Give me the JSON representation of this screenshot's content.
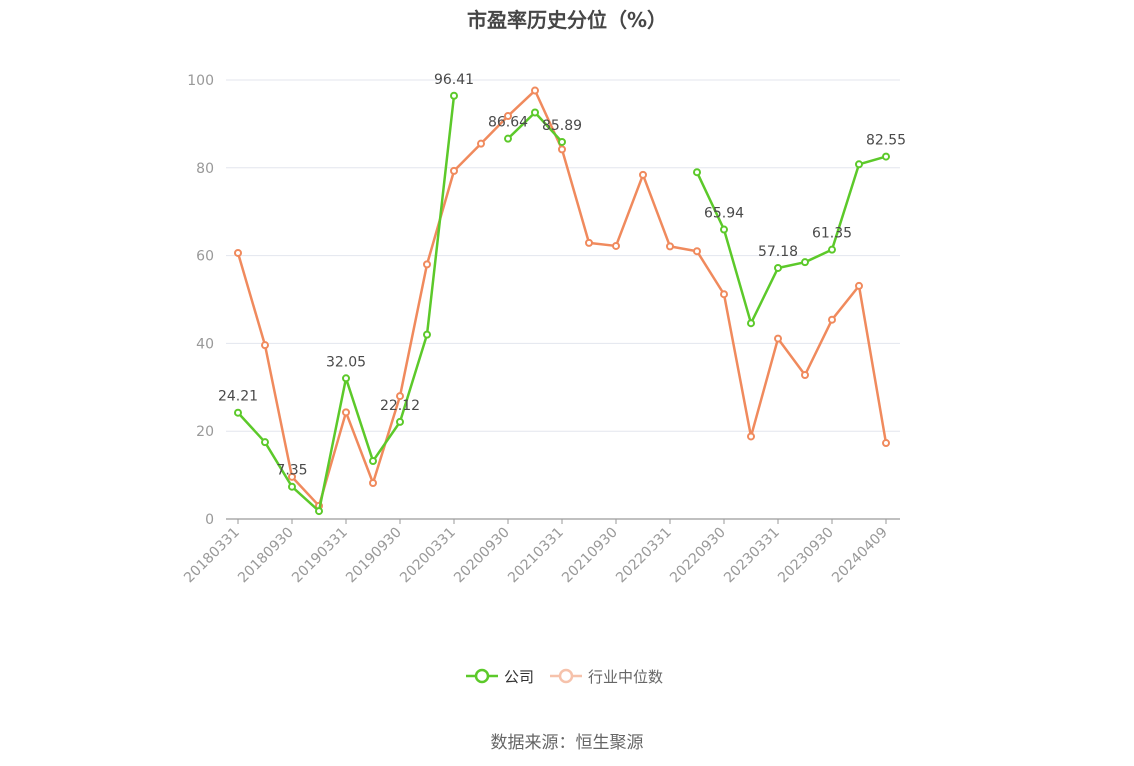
{
  "chart_data": {
    "type": "line",
    "title": "市盈率历史分位（%）",
    "x_tick_labels": [
      "20180331",
      "20180930",
      "20190331",
      "20190930",
      "20200331",
      "20200930",
      "20210331",
      "20210930",
      "20220331",
      "20220930",
      "20230331",
      "20230930",
      "20240409"
    ],
    "x_tick_positions": [
      0,
      2,
      4,
      6,
      8,
      10,
      12,
      14,
      16,
      18,
      20,
      22,
      24
    ],
    "ylim": [
      0,
      100
    ],
    "y_ticks": [
      0,
      20,
      40,
      60,
      80,
      100
    ],
    "grid": true,
    "legend_position": "bottom-center",
    "series": [
      {
        "name": "公司",
        "color": "#5cc92a",
        "values": [
          24.21,
          17.5,
          7.35,
          1.8,
          32.05,
          13.2,
          22.12,
          42.0,
          96.41,
          null,
          86.64,
          92.6,
          85.89,
          null,
          null,
          null,
          null,
          79.0,
          65.94,
          44.6,
          57.18,
          58.5,
          61.35,
          80.8,
          82.55
        ],
        "labels": [
          {
            "index": 0,
            "text": "24.21"
          },
          {
            "index": 2,
            "text": "7.35"
          },
          {
            "index": 4,
            "text": "32.05"
          },
          {
            "index": 6,
            "text": "22.12"
          },
          {
            "index": 8,
            "text": "96.41"
          },
          {
            "index": 10,
            "text": "86.64"
          },
          {
            "index": 12,
            "text": "85.89"
          },
          {
            "index": 18,
            "text": "65.94"
          },
          {
            "index": 20,
            "text": "57.18"
          },
          {
            "index": 22,
            "text": "61.35"
          },
          {
            "index": 24,
            "text": "82.55"
          }
        ]
      },
      {
        "name": "行业中位数",
        "color": "#f08a5d",
        "values": [
          60.6,
          39.6,
          9.6,
          3.0,
          24.3,
          8.2,
          28.0,
          58.0,
          79.3,
          85.5,
          91.8,
          97.6,
          84.2,
          62.9,
          62.2,
          78.4,
          62.1,
          61.0,
          51.2,
          18.8,
          41.1,
          32.8,
          45.4,
          53.1,
          17.3
        ]
      }
    ]
  },
  "source_note": "数据来源：恒生聚源"
}
